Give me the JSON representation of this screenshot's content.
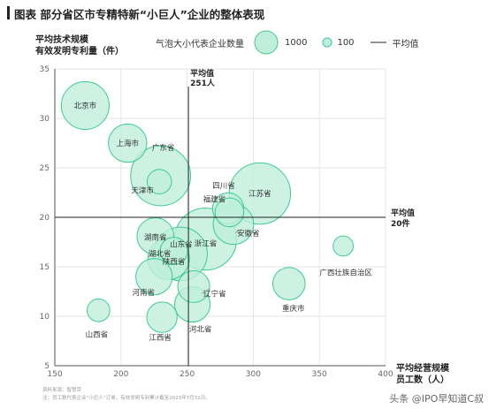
{
  "title": "图表 部分省区市专精特新“小巨人”企业的整体表现",
  "colors": {
    "bubble_fill": "#bfeedd",
    "bubble_stroke": "#3dcb8f",
    "bubble_inner_fill": "#a9e6cb",
    "axis": "#555555",
    "grid": "#e6e6e6",
    "text": "#333333"
  },
  "legend": {
    "caption": "气泡大小代表企业数量",
    "big": "1000",
    "small": "100",
    "line": "平均值"
  },
  "footer": {
    "source": "资料来源：智慧芽",
    "note": "注：员工数代表企业“小巨人”订单，有效发明专利累计截至2023年7月31日。",
    "watermark": "头条 @IPO早知道C叔"
  },
  "chart_data": {
    "type": "scatter",
    "ylabel_lines": [
      "平均技术规模",
      "有效发明专利量（件）"
    ],
    "xlabel_lines": [
      "平均经营规模",
      "员工数（人）"
    ],
    "xlim": [
      150,
      400
    ],
    "ylim": [
      5,
      35
    ],
    "xticks": [
      150,
      200,
      250,
      300,
      350,
      400
    ],
    "yticks": [
      5,
      10,
      15,
      20,
      25,
      30,
      35
    ],
    "grid": true,
    "legend_position": "top",
    "avg_x": {
      "value": 251,
      "label_lines": [
        "平均值",
        "251人"
      ]
    },
    "avg_y": {
      "value": 20,
      "label_lines": [
        "平均值",
        "20件"
      ]
    },
    "points": [
      {
        "name": "北京市",
        "x": 173,
        "y": 31.3,
        "size": 890
      },
      {
        "name": "上海市",
        "x": 205,
        "y": 27.5,
        "size": 530
      },
      {
        "name": "广东省",
        "x": 230,
        "y": 24.2,
        "size": 1480
      },
      {
        "name": "天津市",
        "x": 229,
        "y": 23.6,
        "size": 170
      },
      {
        "name": "四川省",
        "x": 281,
        "y": 20.9,
        "size": 320
      },
      {
        "name": "福建省",
        "x": 282,
        "y": 20.5,
        "size": 260
      },
      {
        "name": "江苏省",
        "x": 305,
        "y": 22.4,
        "size": 1560
      },
      {
        "name": "安徽省",
        "x": 285,
        "y": 19.3,
        "size": 600
      },
      {
        "name": "浙江省",
        "x": 264,
        "y": 17.8,
        "size": 1600
      },
      {
        "name": "山东省",
        "x": 245,
        "y": 16.3,
        "size": 1150
      },
      {
        "name": "湖南省",
        "x": 226,
        "y": 18.1,
        "size": 480
      },
      {
        "name": "湖北省",
        "x": 236,
        "y": 15.8,
        "size": 640
      },
      {
        "name": "陕西省",
        "x": 240,
        "y": 16.6,
        "size": 230
      },
      {
        "name": "河南省",
        "x": 225,
        "y": 14.0,
        "size": 470
      },
      {
        "name": "辽宁省",
        "x": 255,
        "y": 13.0,
        "size": 340
      },
      {
        "name": "重庆市",
        "x": 327,
        "y": 13.3,
        "size": 350
      },
      {
        "name": "广西壮族自治区",
        "x": 368,
        "y": 17.1,
        "size": 100
      },
      {
        "name": "河北省",
        "x": 254,
        "y": 11.2,
        "size": 440
      },
      {
        "name": "江西省",
        "x": 231,
        "y": 9.9,
        "size": 300
      },
      {
        "name": "山西省",
        "x": 183,
        "y": 10.6,
        "size": 140
      }
    ]
  }
}
